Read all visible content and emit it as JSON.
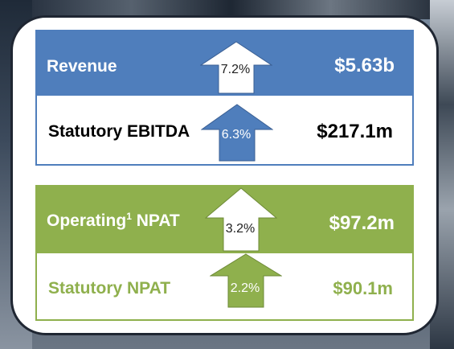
{
  "metrics": [
    {
      "label": "Revenue",
      "change": "7.2%",
      "value": "$5.63b"
    },
    {
      "label": "Statutory EBITDA",
      "change": "6.3%",
      "value": "$217.1m"
    },
    {
      "label_main": "Operating",
      "label_sup": "1",
      "label_rest": " NPAT",
      "change": "3.2%",
      "value": "$97.2m"
    },
    {
      "label": "Statutory NPAT",
      "change": "2.2%",
      "value": "$90.1m"
    }
  ],
  "colors": {
    "blue": "#4f7ebc",
    "green": "#8fb04d",
    "white": "#ffffff",
    "black": "#000000"
  },
  "icons": {
    "up_arrow": "up-arrow-icon"
  }
}
